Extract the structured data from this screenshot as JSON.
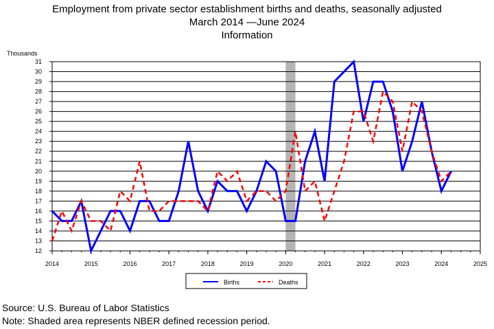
{
  "title": {
    "line1": "Employment from private sector establishment births and deaths, seasonally adjusted",
    "line2": "March 2014 —June 2024",
    "line3": "Information"
  },
  "notes": {
    "source": "Source: U.S. Bureau of Labor Statistics",
    "note": "Note: Shaded area represents NBER defined recession period."
  },
  "chart_data": {
    "type": "line",
    "ylabel": "Thousands",
    "xlabel": "",
    "ylim": [
      12,
      31
    ],
    "xlim": [
      2014,
      2025
    ],
    "x_ticks": [
      "2014",
      "2015",
      "2016",
      "2017",
      "2018",
      "2019",
      "2020",
      "2021",
      "2022",
      "2023",
      "2024",
      "2025"
    ],
    "y_ticks": [
      "12",
      "13",
      "14",
      "15",
      "16",
      "17",
      "18",
      "19",
      "20",
      "21",
      "22",
      "23",
      "24",
      "25",
      "26",
      "27",
      "28",
      "29",
      "30",
      "31"
    ],
    "grid": true,
    "legend_position": "bottom-center",
    "recession": {
      "start": 2020.0,
      "end": 2020.25,
      "color": "#b4b4b4"
    },
    "series": [
      {
        "name": "Births",
        "color": "#0000ff",
        "style": "solid",
        "x": [
          2014.0,
          2014.25,
          2014.5,
          2014.75,
          2015.0,
          2015.25,
          2015.5,
          2015.75,
          2016.0,
          2016.25,
          2016.5,
          2016.75,
          2017.0,
          2017.25,
          2017.5,
          2017.75,
          2018.0,
          2018.25,
          2018.5,
          2018.75,
          2019.0,
          2019.25,
          2019.5,
          2019.75,
          2020.0,
          2020.25,
          2020.5,
          2020.75,
          2021.0,
          2021.25,
          2021.5,
          2021.75,
          2022.0,
          2022.25,
          2022.5,
          2022.75,
          2023.0,
          2023.25,
          2023.5,
          2023.75,
          2024.0,
          2024.25
        ],
        "values": [
          16,
          15,
          15,
          17,
          12,
          14,
          16,
          16,
          14,
          17,
          17,
          15,
          15,
          18,
          23,
          18,
          16,
          19,
          18,
          18,
          16,
          18,
          21,
          20,
          15,
          15,
          21,
          24,
          19,
          29,
          30,
          31,
          25,
          29,
          29,
          26,
          20,
          23,
          27,
          22,
          18,
          20
        ]
      },
      {
        "name": "Deaths",
        "color": "#ff0000",
        "style": "dashed",
        "x": [
          2014.0,
          2014.25,
          2014.5,
          2014.75,
          2015.0,
          2015.25,
          2015.5,
          2015.75,
          2016.0,
          2016.25,
          2016.5,
          2016.75,
          2017.0,
          2017.25,
          2017.5,
          2017.75,
          2018.0,
          2018.25,
          2018.5,
          2018.75,
          2019.0,
          2019.25,
          2019.5,
          2019.75,
          2020.0,
          2020.25,
          2020.5,
          2020.75,
          2021.0,
          2021.25,
          2021.5,
          2021.75,
          2022.0,
          2022.25,
          2022.5,
          2022.75,
          2023.0,
          2023.25,
          2023.5,
          2023.75,
          2024.0,
          2024.25
        ],
        "values": [
          13,
          16,
          14,
          17,
          15,
          15,
          14,
          18,
          17,
          21,
          16,
          16,
          17,
          17,
          17,
          17,
          16,
          20,
          19,
          20,
          17,
          18,
          18,
          17,
          18,
          24,
          18,
          19,
          15,
          18,
          21,
          26,
          26,
          23,
          28,
          27,
          22,
          27,
          26,
          22,
          19,
          20
        ]
      }
    ]
  }
}
